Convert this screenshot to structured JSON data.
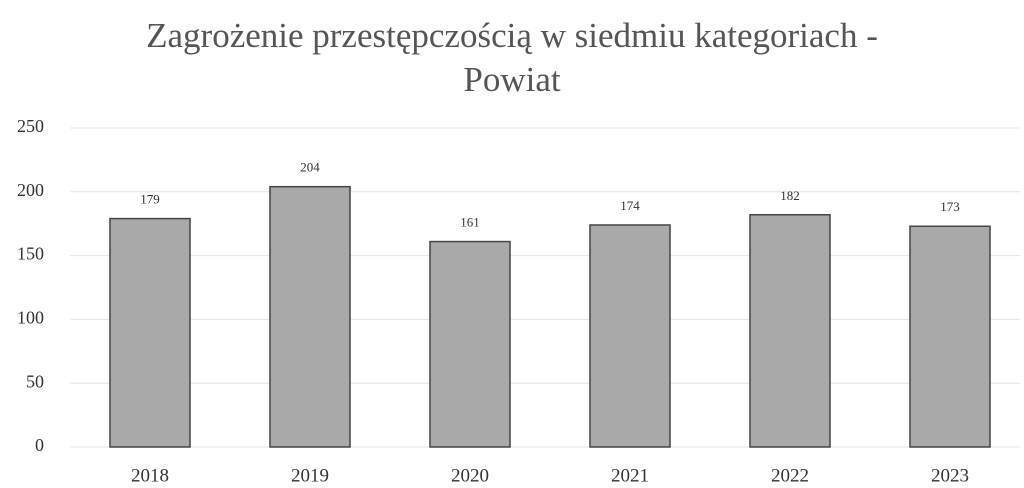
{
  "chart_data": {
    "type": "bar",
    "title": "Zagrożenie przestępczością w siedmiu kategoriach - Powiat",
    "categories": [
      "2018",
      "2019",
      "2020",
      "2021",
      "2022",
      "2023"
    ],
    "values": [
      179,
      204,
      161,
      174,
      182,
      173
    ],
    "color": "#a9a9a9",
    "ylim": [
      0,
      250
    ],
    "yticks": [
      0,
      50,
      100,
      150,
      200,
      250
    ],
    "grid": true
  }
}
